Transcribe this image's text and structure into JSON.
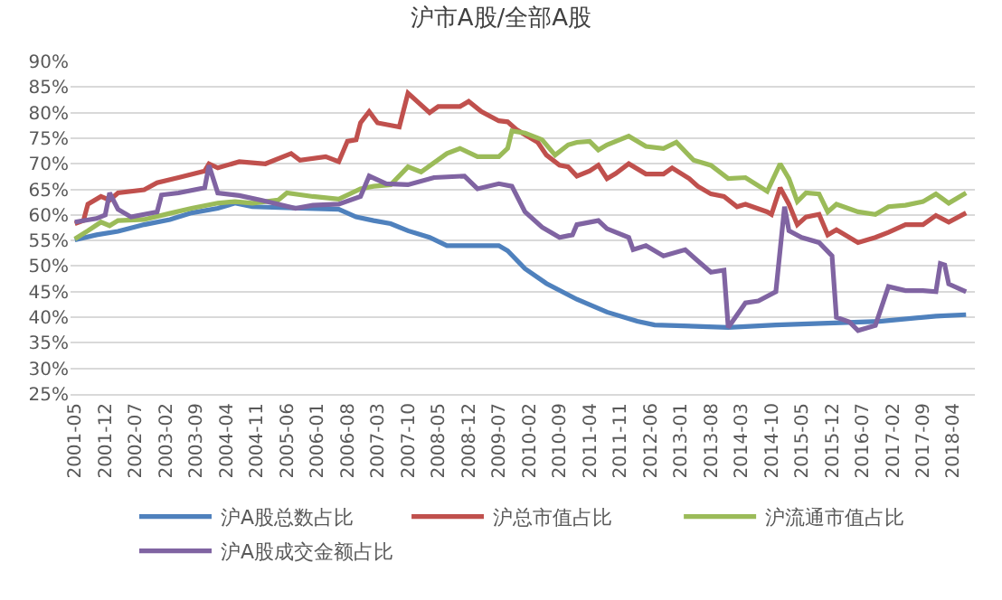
{
  "chart_data": {
    "type": "line",
    "title": "沪市A股/全部A股",
    "xlim": [
      "2001-04",
      "2018-09"
    ],
    "xticks": [
      "2001-05",
      "2001-12",
      "2002-07",
      "2003-02",
      "2003-09",
      "2004-04",
      "2004-11",
      "2005-06",
      "2006-01",
      "2006-08",
      "2007-03",
      "2007-10",
      "2008-05",
      "2008-12",
      "2009-07",
      "2010-02",
      "2010-09",
      "2011-04",
      "2011-11",
      "2012-06",
      "2013-01",
      "2013-08",
      "2014-03",
      "2014-10",
      "2015-05",
      "2015-12",
      "2016-07",
      "2017-02",
      "2017-09",
      "2018-04"
    ],
    "ylim": [
      25,
      90
    ],
    "yticks": [
      {
        "value": 25,
        "label": "25%"
      },
      {
        "value": 30,
        "label": "30%"
      },
      {
        "value": 35,
        "label": "35%"
      },
      {
        "value": 40,
        "label": "40%"
      },
      {
        "value": 45,
        "label": "45%"
      },
      {
        "value": 50,
        "label": "50%"
      },
      {
        "value": 55,
        "label": "55%"
      },
      {
        "value": 60,
        "label": "60%"
      },
      {
        "value": 65,
        "label": "65%"
      },
      {
        "value": 70,
        "label": "70%"
      },
      {
        "value": 75,
        "label": "75%"
      },
      {
        "value": 80,
        "label": "80%"
      },
      {
        "value": 85,
        "label": "85%"
      },
      {
        "value": 90,
        "label": "90%"
      }
    ],
    "grid": "y",
    "legend": "bottom",
    "marker": "none",
    "line_style": "solid",
    "series": [
      {
        "name": "沪A股总数占比",
        "color": "#4f81bd",
        "x": [
          "2001-05",
          "2001-10",
          "2002-03",
          "2002-09",
          "2003-03",
          "2003-08",
          "2004-02",
          "2004-06",
          "2004-10",
          "2005-09",
          "2006-06",
          "2006-10",
          "2007-02",
          "2007-06",
          "2007-10",
          "2008-03",
          "2008-07",
          "2009-07",
          "2009-09",
          "2010-01",
          "2010-06",
          "2011-01",
          "2011-08",
          "2012-03",
          "2012-07",
          "2013-12",
          "2014-11",
          "2016-11",
          "2017-12",
          "2018-07"
        ],
        "values": [
          55.1,
          56.1,
          56.8,
          58.1,
          59.1,
          60.4,
          61.3,
          62.3,
          61.6,
          61.3,
          61.1,
          59.6,
          58.9,
          58.3,
          56.9,
          55.6,
          54,
          54,
          53,
          49.5,
          46.6,
          43.5,
          41,
          39.2,
          38.5,
          38,
          38.5,
          39.2,
          40.2,
          40.5
        ]
      },
      {
        "name": "沪总市值占比",
        "color": "#c0504d",
        "x": [
          "2001-05",
          "2001-07",
          "2001-08",
          "2001-11",
          "2002-01",
          "2002-03",
          "2002-09",
          "2002-12",
          "2003-05",
          "2003-11",
          "2003-12",
          "2004-02",
          "2004-07",
          "2005-01",
          "2005-07",
          "2005-09",
          "2006-03",
          "2006-06",
          "2006-08",
          "2006-10",
          "2006-11",
          "2007-01",
          "2007-03",
          "2007-08",
          "2007-10",
          "2008-03",
          "2008-05",
          "2008-10",
          "2008-12",
          "2009-03",
          "2009-07",
          "2009-09",
          "2009-11",
          "2010-04",
          "2010-06",
          "2010-09",
          "2010-11",
          "2011-01",
          "2011-04",
          "2011-06",
          "2011-08",
          "2011-10",
          "2012-01",
          "2012-05",
          "2012-09",
          "2012-11",
          "2013-03",
          "2013-05",
          "2013-08",
          "2013-11",
          "2014-02",
          "2014-04",
          "2014-09",
          "2014-10",
          "2014-12",
          "2015-02",
          "2015-04",
          "2015-06",
          "2015-09",
          "2015-11",
          "2016-01",
          "2016-06",
          "2016-10",
          "2017-01",
          "2017-05",
          "2017-09",
          "2017-12",
          "2018-03",
          "2018-07"
        ],
        "values": [
          58.3,
          58.9,
          62.1,
          63.6,
          62.9,
          64.3,
          64.9,
          66.3,
          67.3,
          68.6,
          70,
          69.2,
          70.4,
          70,
          72,
          70.7,
          71.4,
          70.4,
          74.4,
          74.7,
          78,
          80.2,
          78,
          77.2,
          83.8,
          80,
          81.2,
          81.2,
          82.2,
          80.2,
          78.4,
          78.2,
          76.7,
          74.2,
          71.7,
          69.7,
          69.4,
          67.6,
          68.6,
          69.7,
          67.1,
          68.1,
          70,
          68,
          68,
          69.2,
          67.1,
          65.6,
          64.1,
          63.6,
          61.6,
          62.1,
          60.6,
          60.1,
          65.3,
          62.1,
          58.1,
          59.6,
          60.1,
          56.1,
          57.1,
          54.6,
          55.6,
          56.6,
          58.1,
          58.1,
          59.9,
          58.6,
          60.4
        ]
      },
      {
        "name": "沪流通市值占比",
        "color": "#9bbb59",
        "x": [
          "2001-05",
          "2001-08",
          "2001-11",
          "2002-01",
          "2002-03",
          "2002-09",
          "2003-03",
          "2003-08",
          "2004-02",
          "2004-06",
          "2004-10",
          "2005-04",
          "2005-06",
          "2005-12",
          "2006-06",
          "2006-11",
          "2007-02",
          "2007-06",
          "2007-10",
          "2008-01",
          "2008-07",
          "2008-10",
          "2009-02",
          "2009-07",
          "2009-09",
          "2009-10",
          "2010-01",
          "2010-05",
          "2010-08",
          "2010-11",
          "2011-01",
          "2011-04",
          "2011-06",
          "2011-08",
          "2012-01",
          "2012-05",
          "2012-09",
          "2012-12",
          "2013-04",
          "2013-08",
          "2013-12",
          "2014-04",
          "2014-09",
          "2014-12",
          "2015-02",
          "2015-04",
          "2015-06",
          "2015-09",
          "2015-11",
          "2016-01",
          "2016-06",
          "2016-10",
          "2017-01",
          "2017-05",
          "2017-09",
          "2017-12",
          "2018-03",
          "2018-07"
        ],
        "values": [
          55.3,
          56.9,
          58.6,
          57.9,
          58.9,
          59.1,
          60.3,
          61.3,
          62.3,
          62.6,
          62.3,
          62.9,
          64.3,
          63.6,
          63.1,
          65.1,
          65.6,
          65.9,
          69.4,
          68.4,
          72,
          73,
          71.4,
          71.4,
          73,
          76.4,
          76,
          74.7,
          71.7,
          73.7,
          74.2,
          74.4,
          72.7,
          73.7,
          75.4,
          73.4,
          73,
          74.2,
          70.7,
          69.7,
          67.1,
          67.3,
          64.6,
          70,
          67.1,
          62.6,
          64.3,
          64.1,
          60.6,
          62.1,
          60.6,
          60.1,
          61.6,
          61.9,
          62.6,
          64.1,
          62.3,
          64.3
        ]
      },
      {
        "name": "沪A股成交金额占比",
        "color": "#8064a2",
        "x": [
          "2001-05",
          "2001-10",
          "2001-12",
          "2002-01",
          "2002-03",
          "2002-06",
          "2002-12",
          "2003-01",
          "2003-05",
          "2003-11",
          "2003-12",
          "2004-02",
          "2004-07",
          "2004-12",
          "2005-04",
          "2005-08",
          "2005-12",
          "2006-06",
          "2006-11",
          "2007-01",
          "2007-05",
          "2007-10",
          "2008-04",
          "2008-11",
          "2009-02",
          "2009-07",
          "2009-10",
          "2010-01",
          "2010-05",
          "2010-09",
          "2010-12",
          "2011-01",
          "2011-06",
          "2011-08",
          "2012-01",
          "2012-02",
          "2012-05",
          "2012-09",
          "2013-02",
          "2013-05",
          "2013-08",
          "2013-11",
          "2013-12",
          "2014-04",
          "2014-07",
          "2014-11",
          "2015-01",
          "2015-02",
          "2015-05",
          "2015-09",
          "2015-12",
          "2016-01",
          "2016-04",
          "2016-06",
          "2016-10",
          "2017-01",
          "2017-05",
          "2017-09",
          "2017-12",
          "2018-01",
          "2018-02",
          "2018-03",
          "2018-07"
        ],
        "values": [
          58.6,
          59.3,
          60,
          64.3,
          61.1,
          59.6,
          60.6,
          63.9,
          64.3,
          65.3,
          69.7,
          64.3,
          63.8,
          62.9,
          62.1,
          61.3,
          61.9,
          62.1,
          63.6,
          67.6,
          66.1,
          65.9,
          67.3,
          67.6,
          65.1,
          66.1,
          65.6,
          60.6,
          57.6,
          55.6,
          56.1,
          58.1,
          58.9,
          57.3,
          55.6,
          53.2,
          54,
          52,
          53.2,
          51,
          48.8,
          49.2,
          38,
          42.8,
          43.2,
          45,
          61.6,
          56.9,
          55.6,
          54.6,
          52,
          40,
          39.1,
          37.4,
          38.4,
          46,
          45.2,
          45.2,
          45,
          50.5,
          50.2,
          46.5,
          45
        ]
      }
    ]
  }
}
